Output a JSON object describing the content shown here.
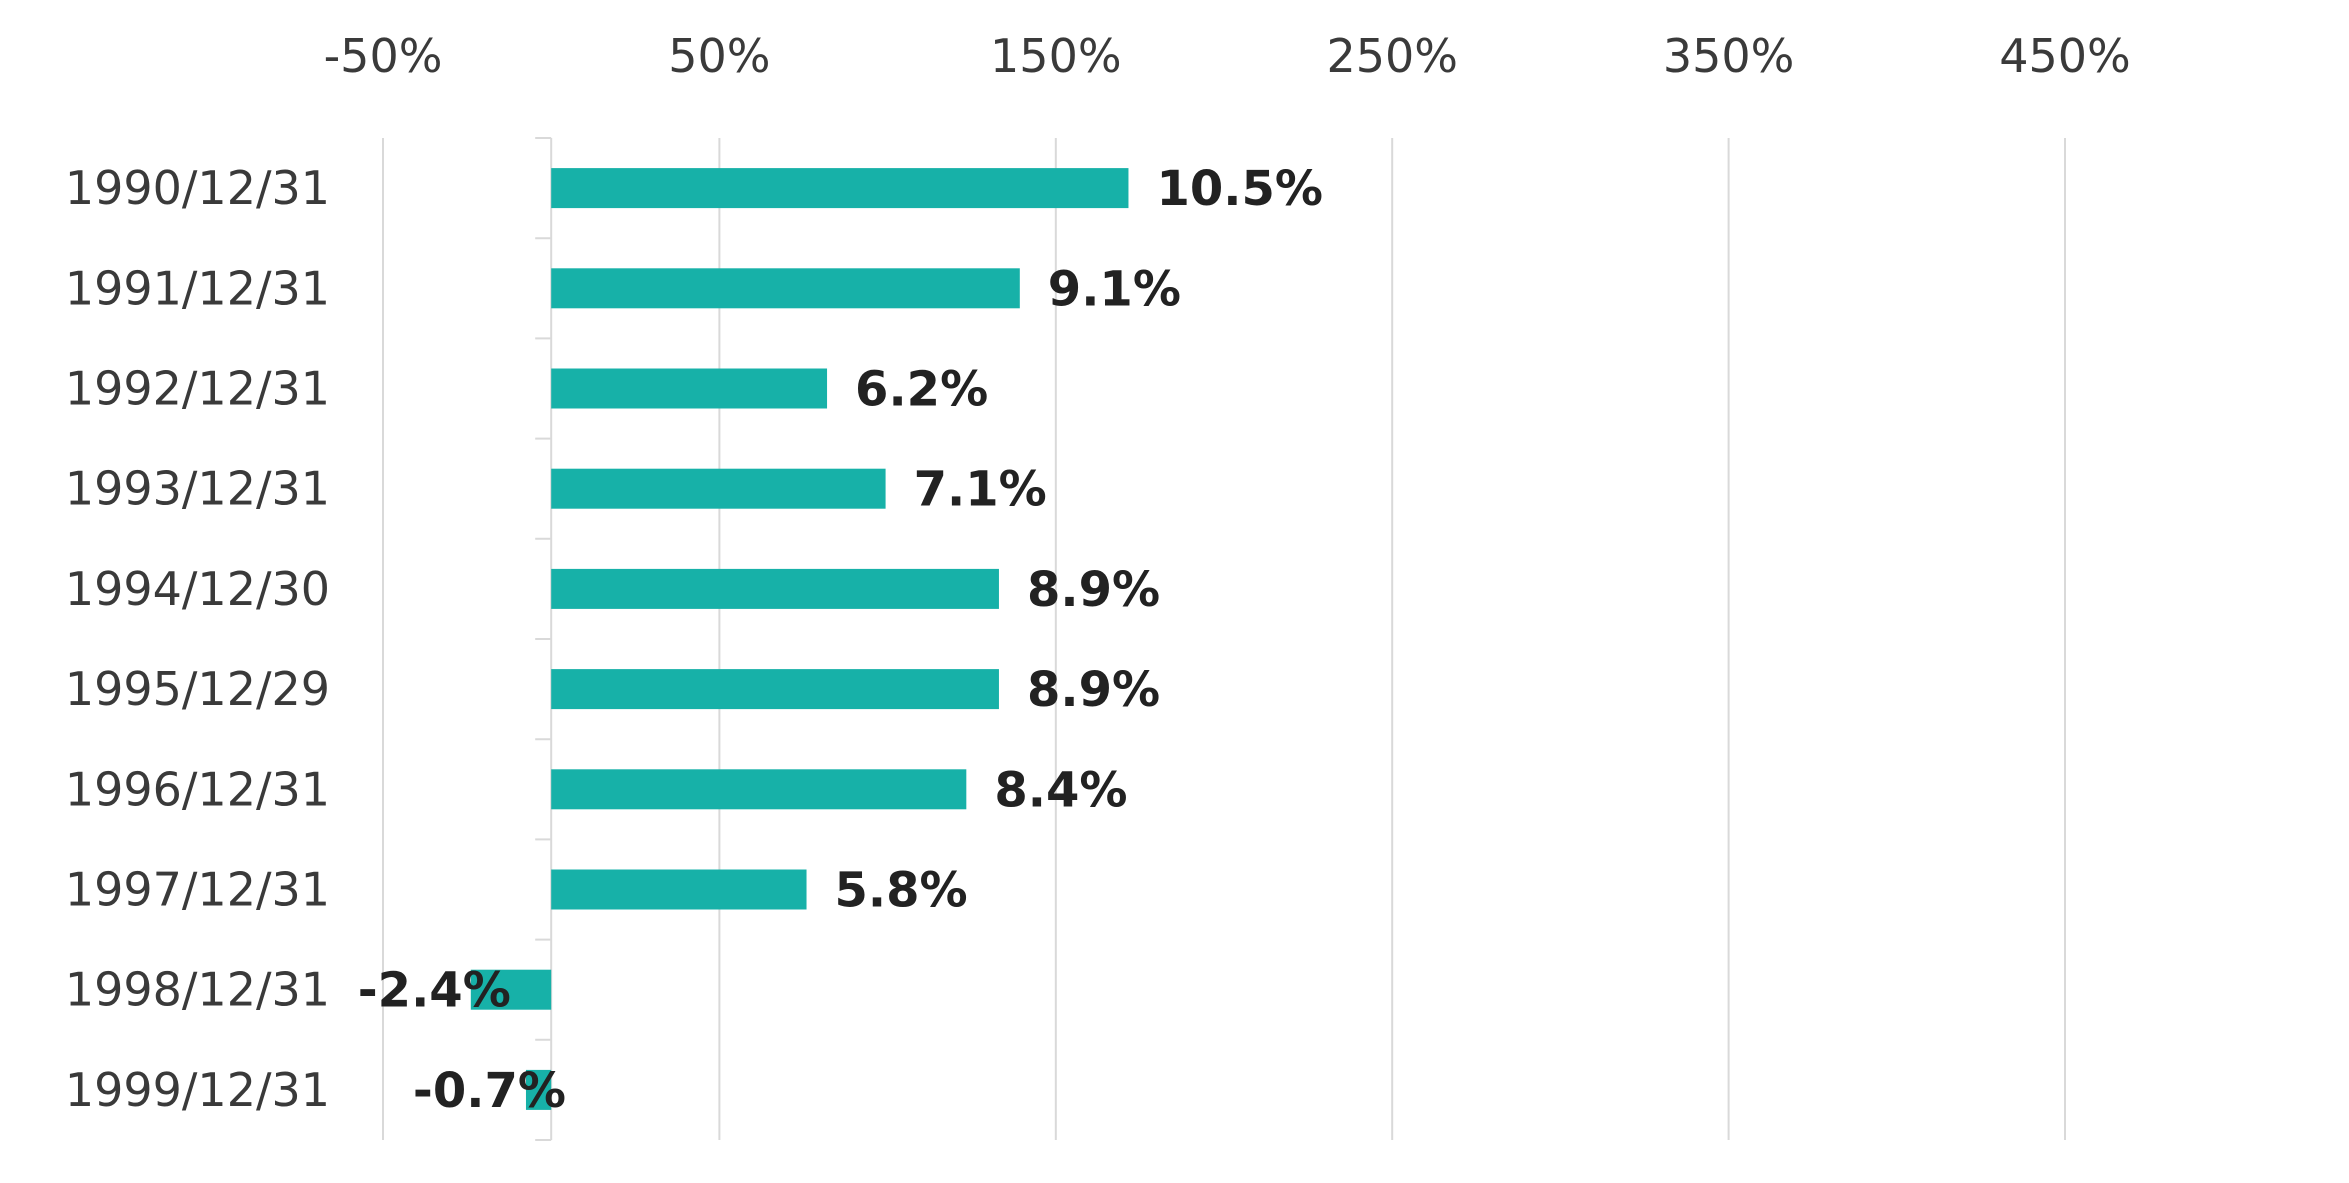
{
  "chart_data": {
    "type": "bar",
    "orientation": "horizontal",
    "categories": [
      "1990/12/31",
      "1991/12/31",
      "1992/12/31",
      "1993/12/31",
      "1994/12/30",
      "1995/12/29",
      "1996/12/31",
      "1997/12/31",
      "1998/12/31",
      "1999/12/31"
    ],
    "values": [
      171.6,
      139.3,
      82.0,
      99.4,
      133.1,
      133.1,
      123.4,
      75.9,
      -23.9,
      -7.5
    ],
    "data_labels": [
      "10.5%",
      "9.1%",
      "6.2%",
      "7.1%",
      "8.9%",
      "8.9%",
      "8.4%",
      "5.8%",
      "-2.4%",
      "-0.7%"
    ],
    "x_ticks": [
      "-50%",
      "50%",
      "150%",
      "250%",
      "350%",
      "450%"
    ],
    "xlim": [
      -50,
      500
    ],
    "x_tick_values": [
      -50,
      50,
      150,
      250,
      350,
      450
    ],
    "grid": true,
    "legend": "none",
    "bar_color": "#17b1a8",
    "grid_color": "#d9d9d9"
  }
}
